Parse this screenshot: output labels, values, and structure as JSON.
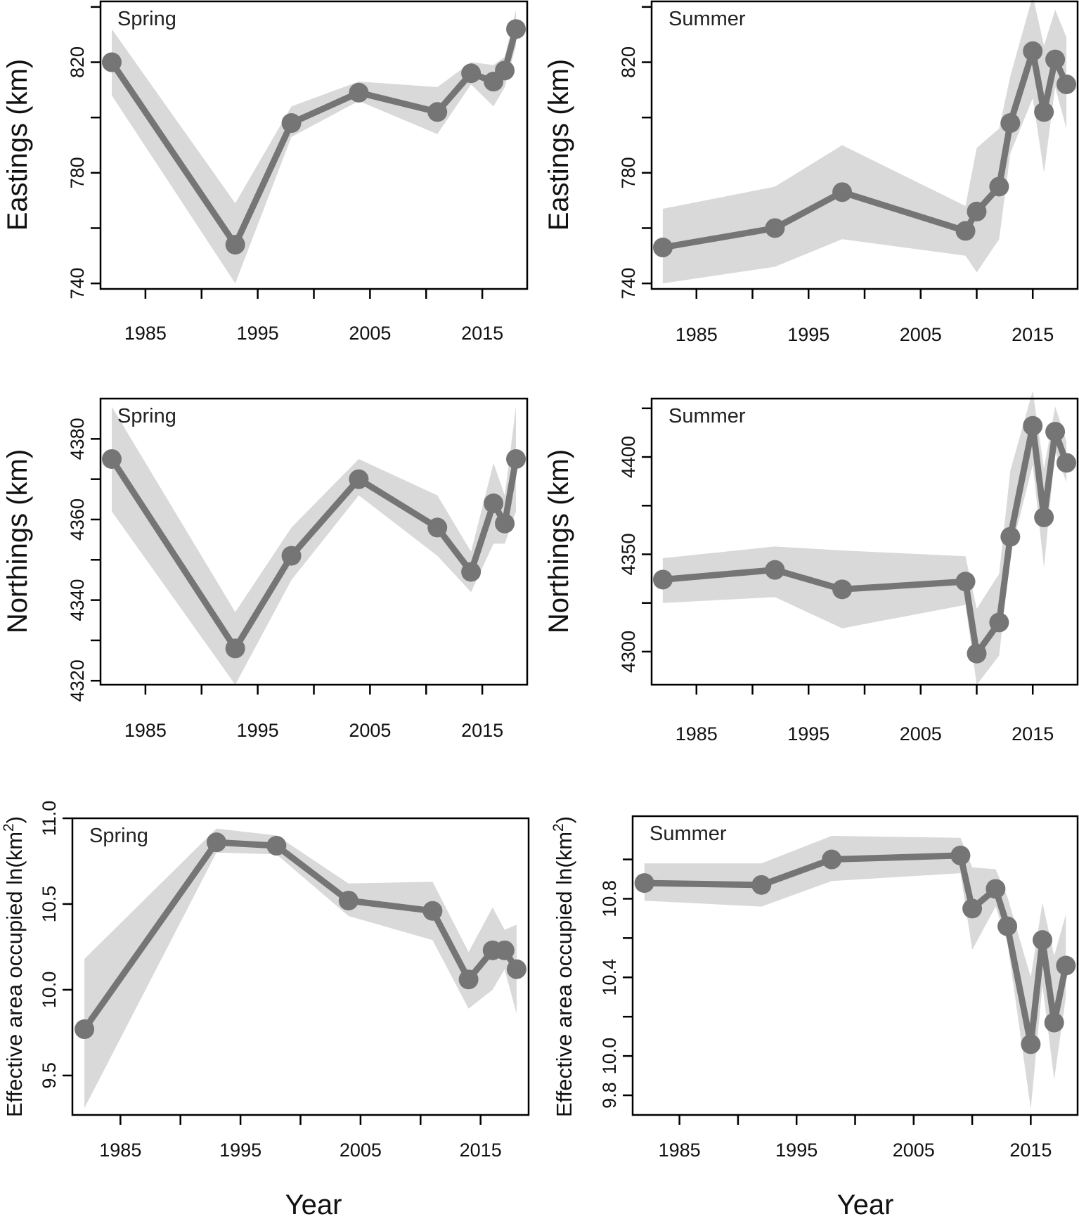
{
  "figure": {
    "xlabel": "Year",
    "colors": {
      "line": "#757575",
      "band": "#d9d9d9",
      "axis": "#000000"
    }
  },
  "chart_data": [
    {
      "id": "spring-eastings",
      "type": "line",
      "panel_label": "Spring",
      "ylabel": "Eastings (km)",
      "ylabel_superscript": "",
      "xlim": [
        1981,
        2019
      ],
      "ylim": [
        738,
        842
      ],
      "x_ticks": [
        1985,
        1990,
        1995,
        2000,
        2005,
        2010,
        2015
      ],
      "x_tick_labels": [
        "1985",
        "",
        "1995",
        "",
        "2005",
        "",
        "2015"
      ],
      "y_ticks": [
        740,
        760,
        780,
        800,
        820,
        840
      ],
      "y_tick_labels": [
        "740",
        "",
        "780",
        "",
        "820",
        ""
      ],
      "x": [
        1982,
        1993,
        1998,
        2004,
        2011,
        2014,
        2016,
        2017,
        2018
      ],
      "y": [
        820,
        754,
        798,
        809,
        802,
        816,
        813,
        817,
        832
      ],
      "lower": [
        808,
        740,
        793,
        806,
        794,
        812,
        804,
        811,
        826
      ],
      "upper": [
        832,
        769,
        804,
        813,
        811,
        820,
        819,
        822,
        839
      ]
    },
    {
      "id": "summer-eastings",
      "type": "line",
      "panel_label": "Summer",
      "ylabel": "Eastings (km)",
      "ylabel_superscript": "",
      "xlim": [
        1981,
        2019
      ],
      "ylim": [
        738,
        842
      ],
      "x_ticks": [
        1985,
        1990,
        1995,
        2000,
        2005,
        2010,
        2015
      ],
      "x_tick_labels": [
        "1985",
        "",
        "1995",
        "",
        "2005",
        "",
        "2015"
      ],
      "y_ticks": [
        740,
        760,
        780,
        800,
        820,
        840
      ],
      "y_tick_labels": [
        "740",
        "",
        "780",
        "",
        "820",
        ""
      ],
      "x": [
        1982,
        1992,
        1998,
        2009,
        2010,
        2012,
        2013,
        2015,
        2016,
        2017,
        2018
      ],
      "y": [
        753,
        760,
        773,
        759,
        766,
        775,
        798,
        824,
        802,
        821,
        812
      ],
      "lower": [
        740,
        746,
        756,
        750,
        744,
        756,
        787,
        807,
        780,
        811,
        796
      ],
      "upper": [
        767,
        775,
        790,
        768,
        789,
        796,
        815,
        844,
        826,
        839,
        829
      ]
    },
    {
      "id": "spring-northings",
      "type": "line",
      "panel_label": "Spring",
      "ylabel": "Northings (km)",
      "ylabel_superscript": "",
      "xlim": [
        1981,
        2019
      ],
      "ylim": [
        4319,
        4390
      ],
      "x_ticks": [
        1985,
        1990,
        1995,
        2000,
        2005,
        2010,
        2015
      ],
      "x_tick_labels": [
        "1985",
        "",
        "1995",
        "",
        "2005",
        "",
        "2015"
      ],
      "y_ticks": [
        4320,
        4330,
        4340,
        4350,
        4360,
        4370,
        4380
      ],
      "y_tick_labels": [
        "4320",
        "",
        "4340",
        "",
        "4360",
        "",
        "4380"
      ],
      "x": [
        1982,
        1993,
        1998,
        2004,
        2011,
        2014,
        2016,
        2017,
        2018
      ],
      "y": [
        4375,
        4328,
        4351,
        4370,
        4358,
        4347,
        4364,
        4359,
        4375
      ],
      "lower": [
        4362,
        4319,
        4345,
        4366,
        4351,
        4342,
        4354,
        4354,
        4362
      ],
      "upper": [
        4388,
        4337,
        4358,
        4375,
        4366,
        4352,
        4374,
        4366,
        4388
      ]
    },
    {
      "id": "summer-northings",
      "type": "line",
      "panel_label": "Summer",
      "ylabel": "Northings (km)",
      "ylabel_superscript": "",
      "xlim": [
        1981,
        2019
      ],
      "ylim": [
        4283,
        4430
      ],
      "x_ticks": [
        1985,
        1990,
        1995,
        2000,
        2005,
        2010,
        2015
      ],
      "x_tick_labels": [
        "1985",
        "",
        "1995",
        "",
        "2005",
        "",
        "2015"
      ],
      "y_ticks": [
        4300,
        4325,
        4350,
        4375,
        4400,
        4425
      ],
      "y_tick_labels": [
        "4300",
        "",
        "4350",
        "",
        "4400",
        ""
      ],
      "x": [
        1982,
        1992,
        1998,
        2009,
        2010,
        2012,
        2013,
        2015,
        2016,
        2017,
        2018
      ],
      "y": [
        4337,
        4342,
        4332,
        4336,
        4299,
        4315,
        4359,
        4416,
        4369,
        4413,
        4397
      ],
      "lower": [
        4325,
        4328,
        4312,
        4324,
        4283,
        4298,
        4350,
        4396,
        4343,
        4403,
        4387
      ],
      "upper": [
        4348,
        4354,
        4352,
        4349,
        4322,
        4340,
        4393,
        4434,
        4394,
        4426,
        4408
      ]
    },
    {
      "id": "spring-area",
      "type": "line",
      "panel_label": "Spring",
      "ylabel": "Effective area occupied ln(km",
      "ylabel_superscript": "2",
      "ylabel_close": ")",
      "xlim": [
        1981,
        2019
      ],
      "ylim": [
        9.27,
        11.0
      ],
      "x_ticks": [
        1985,
        1990,
        1995,
        2000,
        2005,
        2010,
        2015
      ],
      "x_tick_labels": [
        "1985",
        "",
        "1995",
        "",
        "2005",
        "",
        "2015"
      ],
      "y_ticks": [
        9.5,
        10.0,
        10.5,
        11.0
      ],
      "y_tick_labels": [
        "9.5",
        "10.0",
        "10.5",
        "11.0"
      ],
      "x": [
        1982,
        1993,
        1998,
        2004,
        2011,
        2014,
        2016,
        2017,
        2018
      ],
      "y": [
        9.77,
        10.86,
        10.84,
        10.52,
        10.46,
        10.06,
        10.23,
        10.23,
        10.12
      ],
      "lower": [
        9.31,
        10.8,
        10.79,
        10.43,
        10.29,
        9.89,
        10.0,
        10.12,
        9.86
      ],
      "upper": [
        10.18,
        10.94,
        10.9,
        10.62,
        10.63,
        10.22,
        10.48,
        10.35,
        10.38
      ]
    },
    {
      "id": "summer-area",
      "type": "line",
      "panel_label": "Summer",
      "ylabel": "Effective area occupied ln(km",
      "ylabel_superscript": "2",
      "ylabel_close": ")",
      "xlim": [
        1981,
        2019
      ],
      "ylim": [
        9.7,
        11.22
      ],
      "x_ticks": [
        1985,
        1990,
        1995,
        2000,
        2005,
        2010,
        2015
      ],
      "x_tick_labels": [
        "1985",
        "",
        "1995",
        "",
        "2005",
        "",
        "2015"
      ],
      "y_ticks": [
        9.8,
        10.0,
        10.2,
        10.4,
        10.6,
        10.8,
        11.0
      ],
      "y_tick_labels": [
        "9.8",
        "10.0",
        "",
        "10.4",
        "",
        "10.8",
        ""
      ],
      "x": [
        1982,
        1992,
        1998,
        2009,
        2010,
        2012,
        2013,
        2015,
        2016,
        2017,
        2018
      ],
      "y": [
        10.88,
        10.87,
        11.0,
        11.02,
        10.75,
        10.85,
        10.66,
        10.06,
        10.59,
        10.17,
        10.46
      ],
      "lower": [
        10.79,
        10.76,
        10.89,
        10.93,
        10.54,
        10.76,
        10.58,
        9.73,
        10.36,
        9.88,
        10.3
      ],
      "upper": [
        10.98,
        10.98,
        11.12,
        11.11,
        10.96,
        10.95,
        10.81,
        10.4,
        10.78,
        10.51,
        10.72
      ]
    }
  ]
}
